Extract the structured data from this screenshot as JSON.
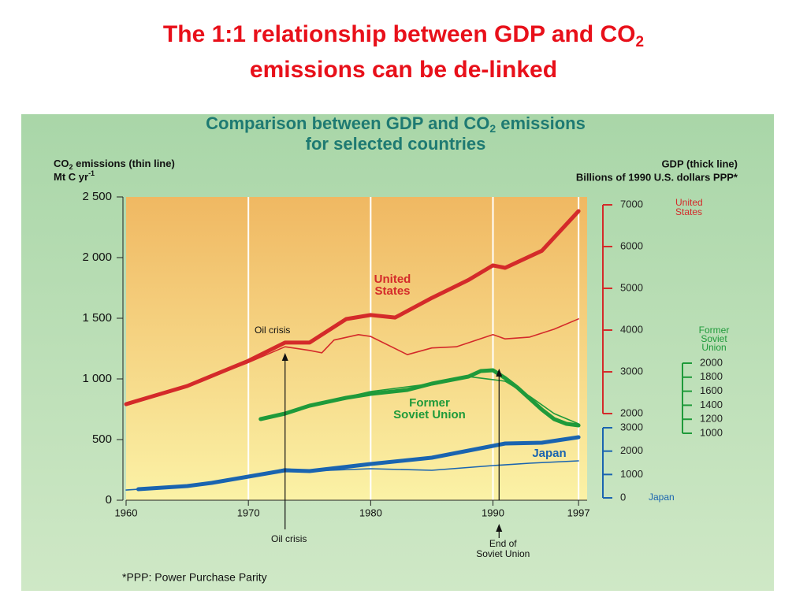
{
  "slide_title": {
    "before": "The 1:1 relationship between GDP and CO",
    "sub": "2",
    "line2": "emissions can be de-linked"
  },
  "chart_data": {
    "type": "line",
    "title": {
      "before": "Comparison between GDP  and CO",
      "sub": "2",
      "after": " emissions",
      "line2": "for selected countries"
    },
    "ylabel": {
      "before": "CO",
      "sub": "2",
      "after": " emissions (thin line)",
      "line2": "Mt C yr",
      "sup": "-1"
    },
    "y2label": {
      "line1": "GDP (thick line)",
      "line2": "Billions of 1990 U.S. dollars PPP*"
    },
    "xlim": [
      1960,
      1997.7
    ],
    "xticks": [
      1960,
      1970,
      1980,
      1990,
      1997
    ],
    "grid": "x",
    "ylim": [
      0,
      2500
    ],
    "yticks": [
      0,
      500,
      {
        "value": 1000,
        "label": "1 000"
      },
      {
        "value": 1500,
        "label": "1 500"
      },
      {
        "value": 2000,
        "label": "2 000"
      },
      {
        "value": 2500,
        "label": "2 500"
      }
    ],
    "y2lim": [
      -75,
      7189
    ],
    "y2ticks": [
      2000,
      3000,
      4000,
      5000,
      6000,
      7000
    ],
    "y2color": "#d42a2a",
    "y2name": [
      "United",
      "States"
    ],
    "y3lim": [
      45,
      4371
    ],
    "y3ticks": [
      1000,
      1200,
      1400,
      1600,
      1800,
      2000
    ],
    "y3color": "#1f9a3a",
    "y3name": [
      "Former",
      "Soviet",
      "Union"
    ],
    "y4lim": [
      -101,
      12875
    ],
    "y4ticks": [
      0,
      1000,
      2000,
      3000
    ],
    "y4color": "#1a64b0",
    "y4name": [
      "Japan"
    ],
    "series": [
      {
        "label_lines": [
          "United",
          "States"
        ],
        "color": "#d42a2a",
        "line": "thick",
        "axis": "y2",
        "x": [
          1960,
          1965,
          1970,
          1973,
          1975,
          1978,
          1980,
          1982,
          1985,
          1988,
          1990,
          1991,
          1994,
          1997
        ],
        "values": [
          2226,
          2660,
          3264,
          3700,
          3700,
          4264,
          4360,
          4300,
          4770,
          5200,
          5550,
          5490,
          5900,
          6850
        ]
      },
      {
        "color": "#d42a2a",
        "line": "thin",
        "axis": "y",
        "x": [
          1960,
          1965,
          1970,
          1973,
          1975,
          1976,
          1977,
          1979,
          1980,
          1983,
          1985,
          1987,
          1990,
          1991,
          1993,
          1995,
          1997
        ],
        "values": [
          780,
          940,
          1135,
          1265,
          1235,
          1215,
          1320,
          1365,
          1350,
          1200,
          1255,
          1265,
          1365,
          1330,
          1345,
          1410,
          1495
        ]
      },
      {
        "label_lines": [
          "Former",
          "Soviet Union"
        ],
        "color": "#1f9a3a",
        "line": "thick",
        "axis": "y3",
        "x": [
          1971,
          1973,
          1975,
          1978,
          1980,
          1983,
          1985,
          1988,
          1989,
          1990,
          1991,
          1992,
          1994,
          1995,
          1996,
          1997
        ],
        "values": [
          1202,
          1281,
          1393,
          1506,
          1562,
          1618,
          1708,
          1809,
          1888,
          1899,
          1787,
          1652,
          1337,
          1202,
          1135,
          1112
        ]
      },
      {
        "color": "#1f9a3a",
        "line": "thin",
        "axis": "y",
        "x": [
          1971,
          1975,
          1980,
          1985,
          1988,
          1990,
          1991,
          1993,
          1995,
          1997
        ],
        "values": [
          669,
          779,
          896,
          961,
          1019,
          994,
          981,
          857,
          714,
          630
        ]
      },
      {
        "label_lines": [
          "Japan"
        ],
        "color": "#1a64b0",
        "line": "thick",
        "axis": "y4",
        "x": [
          1961,
          1965,
          1967,
          1970,
          1973,
          1975,
          1980,
          1985,
          1990,
          1991,
          1994,
          1997
        ],
        "values": [
          371,
          506,
          640,
          910,
          1180,
          1146,
          1449,
          1719,
          2224,
          2326,
          2359,
          2595
        ]
      },
      {
        "color": "#1a64b0",
        "line": "thin",
        "axis": "y",
        "x": [
          1960,
          1965,
          1970,
          1973,
          1975,
          1980,
          1985,
          1990,
          1993,
          1997
        ],
        "values": [
          84,
          117,
          195,
          260,
          240,
          260,
          247,
          286,
          305,
          325
        ]
      }
    ],
    "annotations": [
      {
        "lines": [
          "Oil crisis"
        ],
        "x": 1973
      },
      {
        "lines": [
          "Oil crisis"
        ],
        "x": 1973
      },
      {
        "lines": [
          "End of",
          "Soviet Union"
        ],
        "x": 1990.5
      }
    ],
    "footnote": "*PPP: Power Purchase Parity"
  }
}
